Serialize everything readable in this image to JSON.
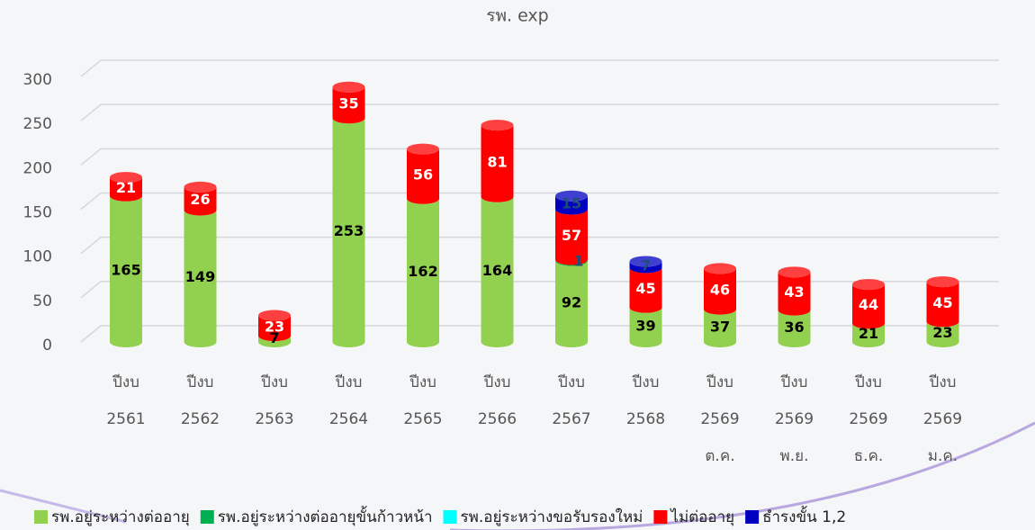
{
  "chart_data": {
    "type": "bar",
    "stacked": true,
    "title": "รพ. exp",
    "categories": [
      [
        "ปีงบ",
        "2561"
      ],
      [
        "ปีงบ",
        "2562"
      ],
      [
        "ปีงบ",
        "2563"
      ],
      [
        "ปีงบ",
        "2564"
      ],
      [
        "ปีงบ",
        "2565"
      ],
      [
        "ปีงบ",
        "2566"
      ],
      [
        "ปีงบ",
        "2567"
      ],
      [
        "ปีงบ",
        "2568"
      ],
      [
        "ปีงบ",
        "2569",
        "ต.ค."
      ],
      [
        "ปีงบ",
        "2569",
        "พ.ย."
      ],
      [
        "ปีงบ",
        "2569",
        "ธ.ค."
      ],
      [
        "ปีงบ",
        "2569",
        "ม.ค."
      ]
    ],
    "series": [
      {
        "name": "รพ.อยู่ระหว่างต่ออายุ",
        "color": "#92d050",
        "label_color": "#000000",
        "values": [
          165,
          149,
          7,
          253,
          162,
          164,
          92,
          39,
          37,
          36,
          21,
          23
        ]
      },
      {
        "name": "รพ.อยู่ระหว่างต่ออายุขั้นก้าวหน้า",
        "color": "#00b050",
        "label_color": "#1f4e79",
        "values": [
          null,
          null,
          null,
          null,
          null,
          null,
          1,
          null,
          null,
          null,
          null,
          null
        ]
      },
      {
        "name": "รพ.อยู่ระหว่างขอรับรองใหม่",
        "color": "#00ffff",
        "label_color": "#000000",
        "values": [
          null,
          null,
          null,
          null,
          null,
          null,
          null,
          null,
          null,
          null,
          null,
          null
        ]
      },
      {
        "name": "ไม่ต่ออายุ",
        "color": "#ff0000",
        "label_color": "#ffffff",
        "values": [
          21,
          26,
          23,
          35,
          56,
          81,
          57,
          45,
          46,
          43,
          44,
          45
        ]
      },
      {
        "name": "ธำรงขั้น 1,2",
        "color": "#0000c0",
        "label_color": "#1f4e79",
        "values": [
          null,
          null,
          null,
          null,
          null,
          null,
          15,
          7,
          null,
          null,
          null,
          null
        ]
      }
    ],
    "ylim": [
      0,
      300
    ],
    "yticks": [
      0,
      50,
      100,
      150,
      200,
      250,
      300
    ],
    "grid": true,
    "legend": "bottom"
  }
}
